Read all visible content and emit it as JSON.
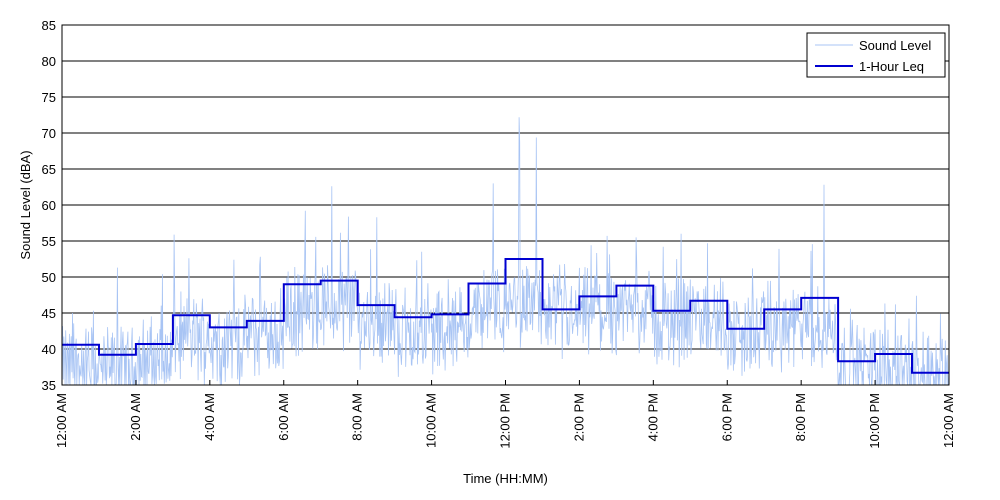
{
  "chart_data": {
    "type": "line",
    "title": "",
    "xlabel": "Time (HH:MM)",
    "ylabel": "Sound Level (dBA)",
    "xlim": [
      0,
      24
    ],
    "ylim": [
      35,
      85
    ],
    "y_ticks": [
      35,
      40,
      45,
      50,
      55,
      60,
      65,
      70,
      75,
      80,
      85
    ],
    "x_ticks": [
      0,
      2,
      4,
      6,
      8,
      10,
      12,
      14,
      16,
      18,
      20,
      22,
      24
    ],
    "x_tick_labels": [
      "12:00 AM",
      "2:00 AM",
      "4:00 AM",
      "6:00 AM",
      "8:00 AM",
      "10:00 AM",
      "12:00 PM",
      "2:00 PM",
      "4:00 PM",
      "6:00 PM",
      "8:00 PM",
      "10:00 PM",
      "12:00 AM"
    ],
    "grid": "horizontal",
    "legend_position": "top-right",
    "colors": {
      "sound_level": "#a8c4f4",
      "leq": "#0000d0"
    },
    "series": [
      {
        "name": "Sound Level",
        "style": "thin-noisy-line",
        "hourly_mean": [
          37.5,
          37.0,
          38.5,
          41.5,
          41.0,
          42.0,
          45.0,
          46.0,
          44.0,
          42.5,
          42.5,
          45.0,
          46.5,
          44.0,
          45.0,
          45.5,
          43.5,
          44.0,
          42.0,
          43.0,
          42.5,
          37.5,
          37.5,
          36.5
        ],
        "hourly_peak": [
          45,
          51.3,
          50.4,
          52.6,
          52.4,
          52.8,
          59.2,
          62.6,
          58.3,
          53.5,
          49.7,
          63.0,
          68.7,
          51.8,
          54.4,
          55.5,
          56.0,
          54.7,
          51.2,
          53.9,
          62.8,
          45.6,
          46.2,
          44.9
        ]
      },
      {
        "name": "1-Hour Leq",
        "style": "step",
        "values": [
          40.6,
          39.2,
          40.7,
          44.7,
          43.0,
          43.9,
          49.0,
          49.5,
          46.1,
          44.4,
          44.8,
          49.1,
          52.5,
          45.5,
          47.3,
          48.8,
          45.3,
          46.7,
          42.8,
          45.5,
          47.1,
          38.3,
          39.3,
          36.7
        ]
      }
    ]
  }
}
